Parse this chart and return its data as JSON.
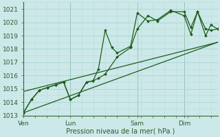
{
  "background_color": "#cce8e8",
  "grid_color_major": "#b0d8d8",
  "grid_color_minor": "#c4e2e2",
  "line_color": "#1a5c1a",
  "text_color": "#2d5a2d",
  "xlabel": "Pression niveau de la mer( hPa )",
  "ylim": [
    1013,
    1021.5
  ],
  "yticks": [
    1013,
    1014,
    1015,
    1016,
    1017,
    1018,
    1019,
    1020,
    1021
  ],
  "xlim": [
    0,
    14.5
  ],
  "day_labels": [
    "Ven",
    "Lun",
    "Sam",
    "Dim"
  ],
  "day_positions": [
    0.0,
    3.5,
    8.5,
    12.0
  ],
  "vline_positions": [
    0.0,
    3.5,
    8.5,
    12.0
  ],
  "series": [
    {
      "x": [
        0,
        14.5
      ],
      "y": [
        1014.8,
        1018.5
      ],
      "marker": false,
      "linewidth": 0.9
    },
    {
      "x": [
        0,
        14.5
      ],
      "y": [
        1013.2,
        1018.5
      ],
      "marker": false,
      "linewidth": 0.9
    },
    {
      "x": [
        0,
        0.6,
        1.2,
        1.8,
        2.4,
        3.0,
        3.5,
        4.1,
        4.7,
        5.2,
        5.6,
        6.1,
        7.0,
        8.0,
        8.5,
        9.3,
        10.0,
        11.0,
        12.0,
        12.5,
        13.0,
        13.6,
        14.0,
        14.5
      ],
      "y": [
        1013.2,
        1014.2,
        1014.9,
        1015.1,
        1015.3,
        1015.5,
        1014.2,
        1014.5,
        1015.5,
        1015.6,
        1015.8,
        1016.1,
        1017.4,
        1018.1,
        1019.5,
        1020.5,
        1020.1,
        1020.8,
        1020.8,
        1019.6,
        1020.8,
        1019.5,
        1019.4,
        1019.5
      ],
      "marker": true,
      "linewidth": 0.9
    },
    {
      "x": [
        0,
        0.6,
        1.2,
        1.8,
        2.4,
        3.0,
        3.5,
        4.1,
        4.7,
        5.2,
        5.6,
        6.1,
        6.6,
        7.0,
        8.0,
        8.5,
        9.3,
        10.0,
        11.0,
        12.0,
        12.5,
        13.0,
        13.6,
        14.0,
        14.5
      ],
      "y": [
        1013.2,
        1014.2,
        1014.9,
        1015.1,
        1015.3,
        1015.5,
        1014.2,
        1014.5,
        1015.5,
        1015.6,
        1016.5,
        1019.4,
        1018.1,
        1017.7,
        1018.2,
        1020.7,
        1020.1,
        1020.2,
        1020.9,
        1020.5,
        1019.1,
        1020.8,
        1019.0,
        1019.8,
        1019.5
      ],
      "marker": true,
      "linewidth": 0.9
    }
  ]
}
